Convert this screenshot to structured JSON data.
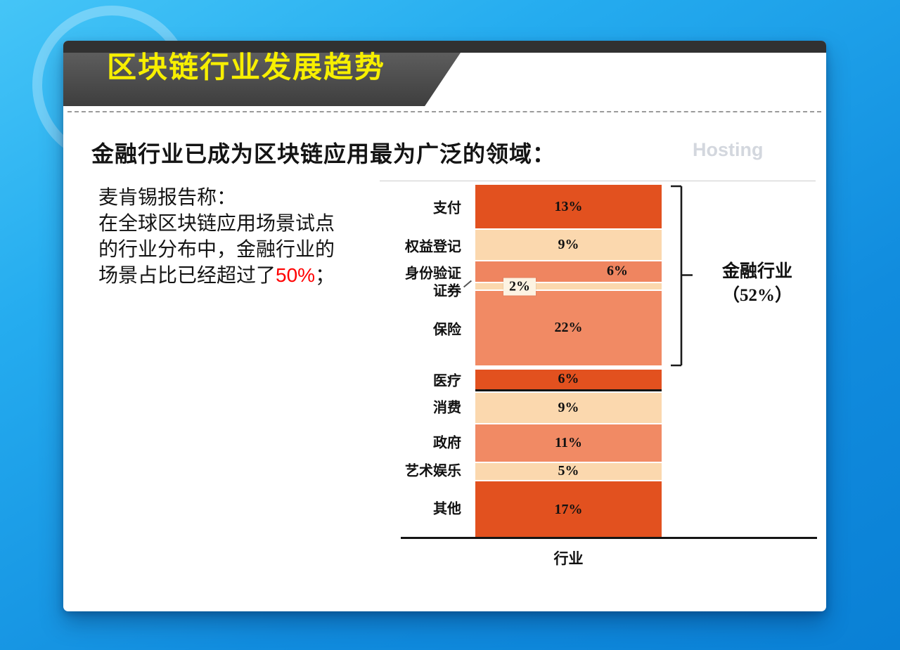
{
  "slide": {
    "title": "区块链行业发展趋势",
    "heading": "金融行业已成为区块链应用最为广泛的领域：",
    "watermark": "Hosting",
    "note_lines": [
      "麦肯锡报告称：",
      "在全球区块链应用场景试点",
      "的行业分布中，金融行业的"
    ],
    "note_last": {
      "prefix": "场景占比已经超过了",
      "highlight": "50%",
      "suffix": "；"
    }
  },
  "chart_data": {
    "type": "bar",
    "subtype": "single-column-stacked",
    "title": "",
    "xlabel": "行业",
    "ylabel": "",
    "unit": "%",
    "ylim": [
      0,
      100
    ],
    "legend": "none",
    "categories": [
      "支付",
      "权益登记",
      "身份验证",
      "证券",
      "保险",
      "医疗",
      "消费",
      "政府",
      "艺术娱乐",
      "其他"
    ],
    "values": [
      13,
      9,
      6,
      2,
      22,
      6,
      9,
      11,
      5,
      17
    ],
    "segments": [
      {
        "label": "支付",
        "value": 13,
        "display": "13%",
        "color": "#e2511f",
        "label_pos": "center"
      },
      {
        "label": "权益登记",
        "value": 9,
        "display": "9%",
        "color": "#fbd8ae",
        "label_pos": "center"
      },
      {
        "label": "身份验证",
        "value": 6,
        "display": "6%",
        "color": "#ef8560",
        "label_pos": "right"
      },
      {
        "label": "证券",
        "value": 2,
        "display": "2%",
        "color": "#fbd8ae",
        "label_pos": "left-box",
        "leader": true
      },
      {
        "label": "保险",
        "value": 22,
        "display": "22%",
        "color": "#f18a64",
        "label_pos": "center",
        "gap_after": 6
      },
      {
        "label": "医疗",
        "value": 6,
        "display": "6%",
        "color": "#e2511f",
        "label_pos": "center",
        "bottom_line": true
      },
      {
        "label": "消费",
        "value": 9,
        "display": "9%",
        "color": "#fbd8ae",
        "label_pos": "center"
      },
      {
        "label": "政府",
        "value": 11,
        "display": "11%",
        "color": "#f18a64",
        "label_pos": "center"
      },
      {
        "label": "艺术娱乐",
        "value": 5,
        "display": "5%",
        "color": "#fbd8ae",
        "label_pos": "center"
      },
      {
        "label": "其他",
        "value": 17,
        "display": "17%",
        "color": "#e2511f",
        "label_pos": "center"
      }
    ],
    "group": {
      "label": "金融行业",
      "value_display": "（52%）",
      "total": 52,
      "members": [
        "支付",
        "权益登记",
        "身份验证",
        "证券",
        "保险"
      ]
    }
  },
  "colors": {
    "accent_dark": "#e2511f",
    "accent_salmon": "#f18a64",
    "accent_peach": "#fbd8ae",
    "title_yellow": "#f7ef00",
    "highlight_red": "#ff0000",
    "header_gray": "#3e3e3e",
    "background_blue": "#1d9fe8"
  }
}
